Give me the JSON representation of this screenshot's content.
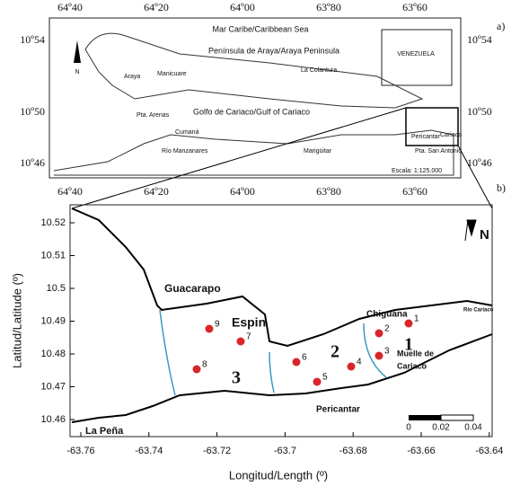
{
  "panel_a": {
    "label": "a)",
    "top_ticks": [
      "64º40",
      "64º20",
      "64º00",
      "63º80",
      "63º60"
    ],
    "lat_ticks": [
      "10º54",
      "10º50",
      "10º46"
    ],
    "sea": "Mar Caribe/Caribbean Sea",
    "peninsula": "Península de Araya/Araya Peninsula",
    "gulf": "Golfo de Cariaco/Gulf of Cariaco",
    "places": [
      "Araya",
      "Manicuare",
      "La Colantura",
      "Pta. Arenas",
      "Cumaná",
      "Río Manzanares",
      "Marigüitar",
      "Pericantar",
      "Pta. San Antonio",
      "Cariaco"
    ],
    "scale": "Escala: 1:125.000",
    "inset": "VENEZUELA",
    "north": "N"
  },
  "panel_b": {
    "label": "b)",
    "y_title": "Latitud/Latitude (º)",
    "x_title": "Longitud/Length (º)",
    "yticks": [
      "10.52",
      "10.51",
      "10.5",
      "10.49",
      "10.48",
      "10.47",
      "10.46"
    ],
    "xticks": [
      "-63.76",
      "-63.74",
      "-63.72",
      "-63.7",
      "-63.68",
      "-63.66",
      "-63.64"
    ],
    "places": [
      "Guacarapo",
      "Chiguana",
      "Muelle de",
      "Cariaco",
      "Espin",
      "La Peña",
      "Pericantar",
      "Río Cariaco"
    ],
    "zones": [
      "1",
      "2",
      "3"
    ],
    "stations": [
      "1",
      "2",
      "3",
      "4",
      "5",
      "6",
      "7",
      "8",
      "9"
    ],
    "scale": [
      "0",
      "0.02",
      "0.04"
    ],
    "north": "N"
  }
}
